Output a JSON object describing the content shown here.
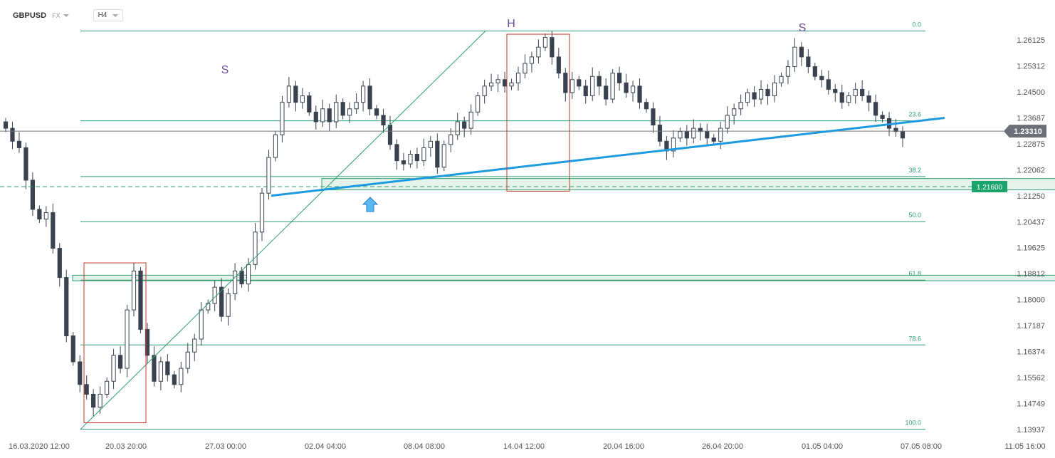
{
  "header": {
    "symbol": "GBPUSD",
    "market": "FX",
    "timeframe": "H4"
  },
  "chart_data": {
    "type": "candlestick",
    "y_ticks": [
      "1.26125",
      "1.25312",
      "1.24500",
      "1.23687",
      "1.22875",
      "1.22062",
      "1.21250",
      "1.20437",
      "1.19625",
      "1.18812",
      "1.18000",
      "1.17187",
      "1.16374",
      "1.15562",
      "1.14749",
      "1.13937"
    ],
    "ylim": [
      1.13937,
      1.26125
    ],
    "x_ticks": [
      "16.03.2020  12:00",
      "20.03  20:00",
      "27.03  00:00",
      "02.04  04:00",
      "08.04  08:00",
      "14.04  12:00",
      "20.04  16:00",
      "26.04  20:00",
      "01.05  04:00",
      "07.05  08:00",
      "11.05  16:00"
    ],
    "current_price": "1.23310",
    "level_badge": "1.21600",
    "fibonacci": [
      {
        "label": "0.0",
        "price": 1.264
      },
      {
        "label": "23.6",
        "price": 1.2363
      },
      {
        "label": "38.2",
        "price": 1.2191
      },
      {
        "label": "50.0",
        "price": 1.2052
      },
      {
        "label": "61.8",
        "price": 1.1872
      },
      {
        "label": "78.6",
        "price": 1.1672
      },
      {
        "label": "100.0",
        "price": 1.1412
      }
    ],
    "pattern_labels": [
      "S",
      "H",
      "S"
    ],
    "annotations": {
      "support_zone": [
        1.215,
        1.2185
      ],
      "zone_61_8": [
        1.187,
        1.1887
      ],
      "neckline": {
        "from_price": 1.2132,
        "to_price": 1.2372
      },
      "boxes": [
        {
          "from": 1.1925,
          "to": 1.1432
        },
        {
          "from": 1.263,
          "to": 1.2146
        }
      ]
    },
    "candles_close": [
      1.234,
      1.23,
      1.228,
      1.218,
      1.209,
      1.206,
      1.208,
      1.197,
      1.188,
      1.17,
      1.162,
      1.155,
      1.152,
      1.148,
      1.152,
      1.156,
      1.164,
      1.16,
      1.178,
      1.19,
      1.172,
      1.164,
      1.156,
      1.162,
      1.158,
      1.155,
      1.16,
      1.165,
      1.169,
      1.178,
      1.18,
      1.185,
      1.176,
      1.183,
      1.19,
      1.186,
      1.192,
      1.202,
      1.214,
      1.225,
      1.232,
      1.242,
      1.247,
      1.242,
      1.244,
      1.239,
      1.236,
      1.24,
      1.236,
      1.242,
      1.238,
      1.24,
      1.242,
      1.247,
      1.24,
      1.238,
      1.235,
      1.229,
      1.224,
      1.223,
      1.226,
      1.224,
      1.228,
      1.23,
      1.222,
      1.229,
      1.232,
      1.236,
      1.234,
      1.239,
      1.244,
      1.247,
      1.248,
      1.249,
      1.247,
      1.248,
      1.251,
      1.254,
      1.256,
      1.259,
      1.262,
      1.256,
      1.251,
      1.245,
      1.249,
      1.247,
      1.244,
      1.25,
      1.247,
      1.243,
      1.251,
      1.248,
      1.245,
      1.247,
      1.242,
      1.24,
      1.235,
      1.23,
      1.227,
      1.231,
      1.233,
      1.231,
      1.234,
      1.233,
      1.231,
      1.23,
      1.234,
      1.238,
      1.24,
      1.242,
      1.245,
      1.243,
      1.246,
      1.244,
      1.248,
      1.25,
      1.253,
      1.259,
      1.256,
      1.253,
      1.25,
      1.249,
      1.246,
      1.245,
      1.242,
      1.244,
      1.246,
      1.244,
      1.242,
      1.238,
      1.237,
      1.234,
      1.233,
      1.231
    ]
  }
}
